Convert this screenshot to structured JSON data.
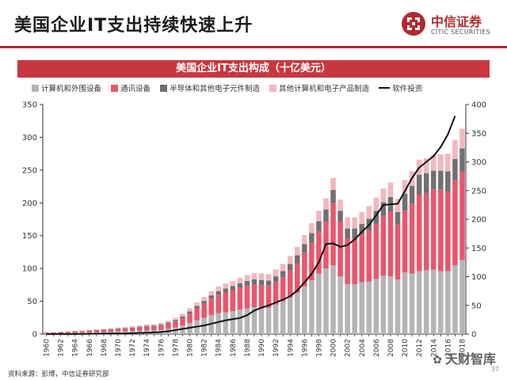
{
  "page": {
    "title": "美国企业IT支出持续快速上升",
    "source": "资料来源：彭博，中信证券研究部",
    "watermark": "天财智库",
    "page_number": "37"
  },
  "logo": {
    "name_cn": "中信证券",
    "name_en": "CITIC SECURITIES",
    "icon": "citic-logo-icon",
    "color": "#b2292e"
  },
  "chart_data": {
    "type": "bar",
    "stacked": true,
    "title": "美国企业IT支出构成（十亿美元）",
    "x": [
      1960,
      1961,
      1962,
      1963,
      1964,
      1965,
      1966,
      1967,
      1968,
      1969,
      1970,
      1971,
      1972,
      1973,
      1974,
      1975,
      1976,
      1977,
      1978,
      1979,
      1980,
      1981,
      1982,
      1983,
      1984,
      1985,
      1986,
      1987,
      1988,
      1989,
      1990,
      1991,
      1992,
      1993,
      1994,
      1995,
      1996,
      1997,
      1998,
      1999,
      2000,
      2001,
      2002,
      2003,
      2004,
      2005,
      2006,
      2007,
      2008,
      2009,
      2010,
      2011,
      2012,
      2013,
      2014,
      2015,
      2016,
      2017,
      2018
    ],
    "x_tick_labels": [
      "1960",
      "1962",
      "1964",
      "1966",
      "1968",
      "1970",
      "1972",
      "1974",
      "1976",
      "1978",
      "1980",
      "1982",
      "1984",
      "1986",
      "1988",
      "1990",
      "1992",
      "1994",
      "1996",
      "1998",
      "2000",
      "2002",
      "2004",
      "2006",
      "2008",
      "2010",
      "2012",
      "2014",
      "2016",
      "2018"
    ],
    "y_left": {
      "min": 0,
      "max": 350,
      "ticks": [
        0,
        50,
        100,
        150,
        200,
        250,
        300,
        350
      ]
    },
    "y_right": {
      "min": 0,
      "max": 400,
      "ticks": [
        0,
        50,
        100,
        150,
        200,
        250,
        300,
        350,
        400
      ]
    },
    "grid": false,
    "legend_position": "top",
    "series": [
      {
        "name": "计算机和外围设备",
        "color": "#b5b5b5",
        "axis": "left",
        "values": [
          1,
          1,
          1.2,
          1.5,
          1.8,
          2.1,
          2.5,
          2.8,
          3,
          3.5,
          4,
          4,
          4.5,
          5,
          5.5,
          5.5,
          6.5,
          8,
          10,
          13,
          17,
          21,
          25,
          29,
          32,
          33,
          35,
          37,
          39,
          41,
          39,
          40,
          45,
          50,
          56,
          63,
          73,
          82,
          92,
          100,
          105,
          88,
          76,
          76,
          79,
          80,
          84,
          89,
          88,
          83,
          94,
          92,
          96,
          97,
          98,
          96,
          96,
          105,
          113
        ]
      },
      {
        "name": "通讯设备",
        "color": "#e9566c",
        "axis": "left",
        "values": [
          1,
          1.2,
          1.4,
          1.6,
          1.8,
          2,
          2.4,
          2.6,
          3,
          3.2,
          3.5,
          4,
          4.5,
          5,
          5.5,
          6,
          6.5,
          7.5,
          9,
          11,
          14,
          18,
          21,
          25,
          28,
          31,
          32,
          34,
          35,
          35,
          36,
          34,
          35,
          37,
          41,
          45,
          51,
          57,
          64,
          72,
          95,
          84,
          70,
          69,
          73,
          78,
          84,
          91,
          99,
          84,
          94,
          107,
          117,
          118,
          123,
          124,
          121,
          130,
          135
        ]
      },
      {
        "name": "半导体和其他电子元件制造",
        "color": "#707070",
        "axis": "left",
        "values": [
          0.3,
          0.3,
          0.4,
          0.4,
          0.5,
          0.5,
          0.6,
          0.7,
          0.8,
          0.9,
          1,
          1,
          1.1,
          1.3,
          1.5,
          1.4,
          1.7,
          2,
          2.5,
          3,
          3.5,
          4,
          4.5,
          5,
          5.5,
          5.5,
          6,
          6.5,
          7,
          7.5,
          7.5,
          7.5,
          8,
          9,
          10,
          12,
          13,
          15,
          16,
          18,
          20,
          16,
          15,
          16,
          16,
          18,
          20,
          21,
          22,
          19,
          26,
          27,
          30,
          30,
          28,
          29,
          31,
          32,
          35
        ]
      },
      {
        "name": "其他计算机和电子产品制造",
        "color": "#f4b6bd",
        "axis": "left",
        "values": [
          0.5,
          0.5,
          0.6,
          0.7,
          0.8,
          0.9,
          1,
          1.1,
          1.3,
          1.5,
          1.6,
          1.7,
          1.8,
          2,
          2.2,
          2.2,
          2.5,
          3,
          3.5,
          4,
          5,
          5,
          6,
          6.5,
          7,
          7.5,
          8,
          8.5,
          9,
          9.5,
          10,
          10,
          10.5,
          11,
          12,
          13,
          14,
          15,
          16,
          17,
          18,
          17,
          17,
          17,
          18,
          19,
          20,
          21,
          22,
          20,
          21,
          22,
          23,
          23,
          24,
          25,
          27,
          29,
          30
        ]
      },
      {
        "name": "软件投资",
        "color": "#111111",
        "axis": "right",
        "type": "line",
        "values": [
          0.1,
          0.1,
          0.1,
          0.2,
          0.2,
          0.3,
          0.5,
          0.6,
          0.8,
          1,
          1,
          1,
          1.5,
          2,
          2.5,
          3,
          3.5,
          5,
          7,
          9,
          11,
          13,
          15,
          18,
          21,
          24,
          26,
          28,
          33,
          41,
          46,
          50,
          55,
          60,
          66,
          76,
          90,
          105,
          125,
          157,
          158,
          152,
          155,
          165,
          178,
          190,
          207,
          225,
          226,
          227,
          249,
          272,
          290,
          300,
          310,
          326,
          348,
          380,
          null
        ]
      }
    ]
  }
}
